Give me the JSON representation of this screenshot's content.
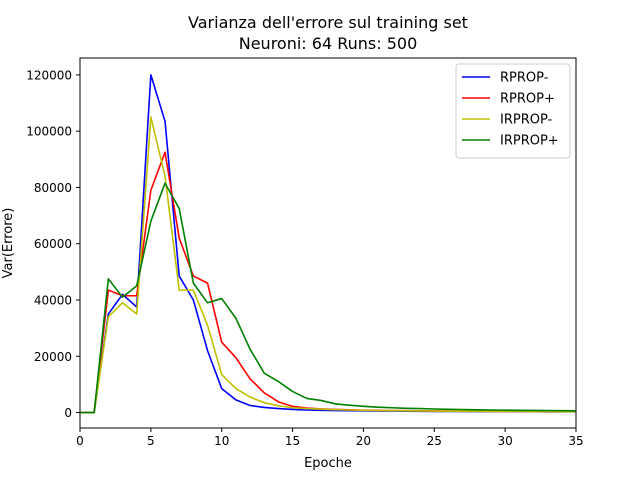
{
  "chart_data": {
    "type": "line",
    "title_line1": "Varianza dell'errore sul training set",
    "title_line2": "Neuroni: 64 Runs: 500",
    "xlabel": "Epoche",
    "ylabel": "Var(Errore)",
    "xlim": [
      0,
      35
    ],
    "ylim": [
      -5500,
      126000
    ],
    "xticks": [
      0,
      5,
      10,
      15,
      20,
      25,
      30,
      35
    ],
    "yticks": [
      0,
      20000,
      40000,
      60000,
      80000,
      100000,
      120000
    ],
    "grid": false,
    "legend_position": "top-right",
    "x": [
      0,
      1,
      2,
      3,
      4,
      5,
      6,
      7,
      8,
      9,
      10,
      11,
      12,
      13,
      14,
      15,
      16,
      17,
      18,
      19,
      20,
      21,
      22,
      23,
      24,
      25,
      26,
      27,
      28,
      29,
      30,
      31,
      32,
      33,
      34,
      35
    ],
    "series": [
      {
        "name": "RPROP-",
        "color": "#0000ff",
        "values": [
          0,
          0,
          35000,
          42000,
          37500,
          120000,
          103500,
          48500,
          40000,
          22000,
          8500,
          4500,
          2500,
          1800,
          1400,
          1100,
          900,
          800,
          700,
          650,
          600,
          550,
          500,
          450,
          420,
          400,
          380,
          360,
          340,
          320,
          300,
          290,
          280,
          270,
          260,
          250
        ]
      },
      {
        "name": "RPROP+",
        "color": "#ff0000",
        "values": [
          0,
          0,
          43500,
          41500,
          41500,
          79000,
          92500,
          62000,
          48500,
          46000,
          25000,
          19500,
          12000,
          7000,
          3800,
          2200,
          1600,
          1300,
          1100,
          950,
          850,
          780,
          720,
          660,
          600,
          550,
          520,
          490,
          460,
          430,
          400,
          380,
          360,
          340,
          320,
          300
        ]
      },
      {
        "name": "IRPROP-",
        "color": "#bfbf00",
        "values": [
          0,
          0,
          34000,
          39000,
          35000,
          105000,
          84000,
          43500,
          43500,
          31000,
          13500,
          8500,
          5500,
          3500,
          2400,
          1700,
          1400,
          1200,
          1000,
          900,
          800,
          720,
          660,
          600,
          560,
          520,
          490,
          460,
          430,
          400,
          380,
          360,
          340,
          320,
          300,
          290
        ]
      },
      {
        "name": "IRPROP+",
        "color": "#008000",
        "values": [
          0,
          0,
          47500,
          41000,
          45000,
          68000,
          81500,
          72500,
          46000,
          39000,
          40500,
          33500,
          22500,
          14000,
          11000,
          7500,
          5000,
          4300,
          3100,
          2600,
          2200,
          1900,
          1700,
          1500,
          1400,
          1250,
          1150,
          1050,
          950,
          900,
          850,
          800,
          750,
          700,
          650,
          600
        ]
      }
    ]
  }
}
